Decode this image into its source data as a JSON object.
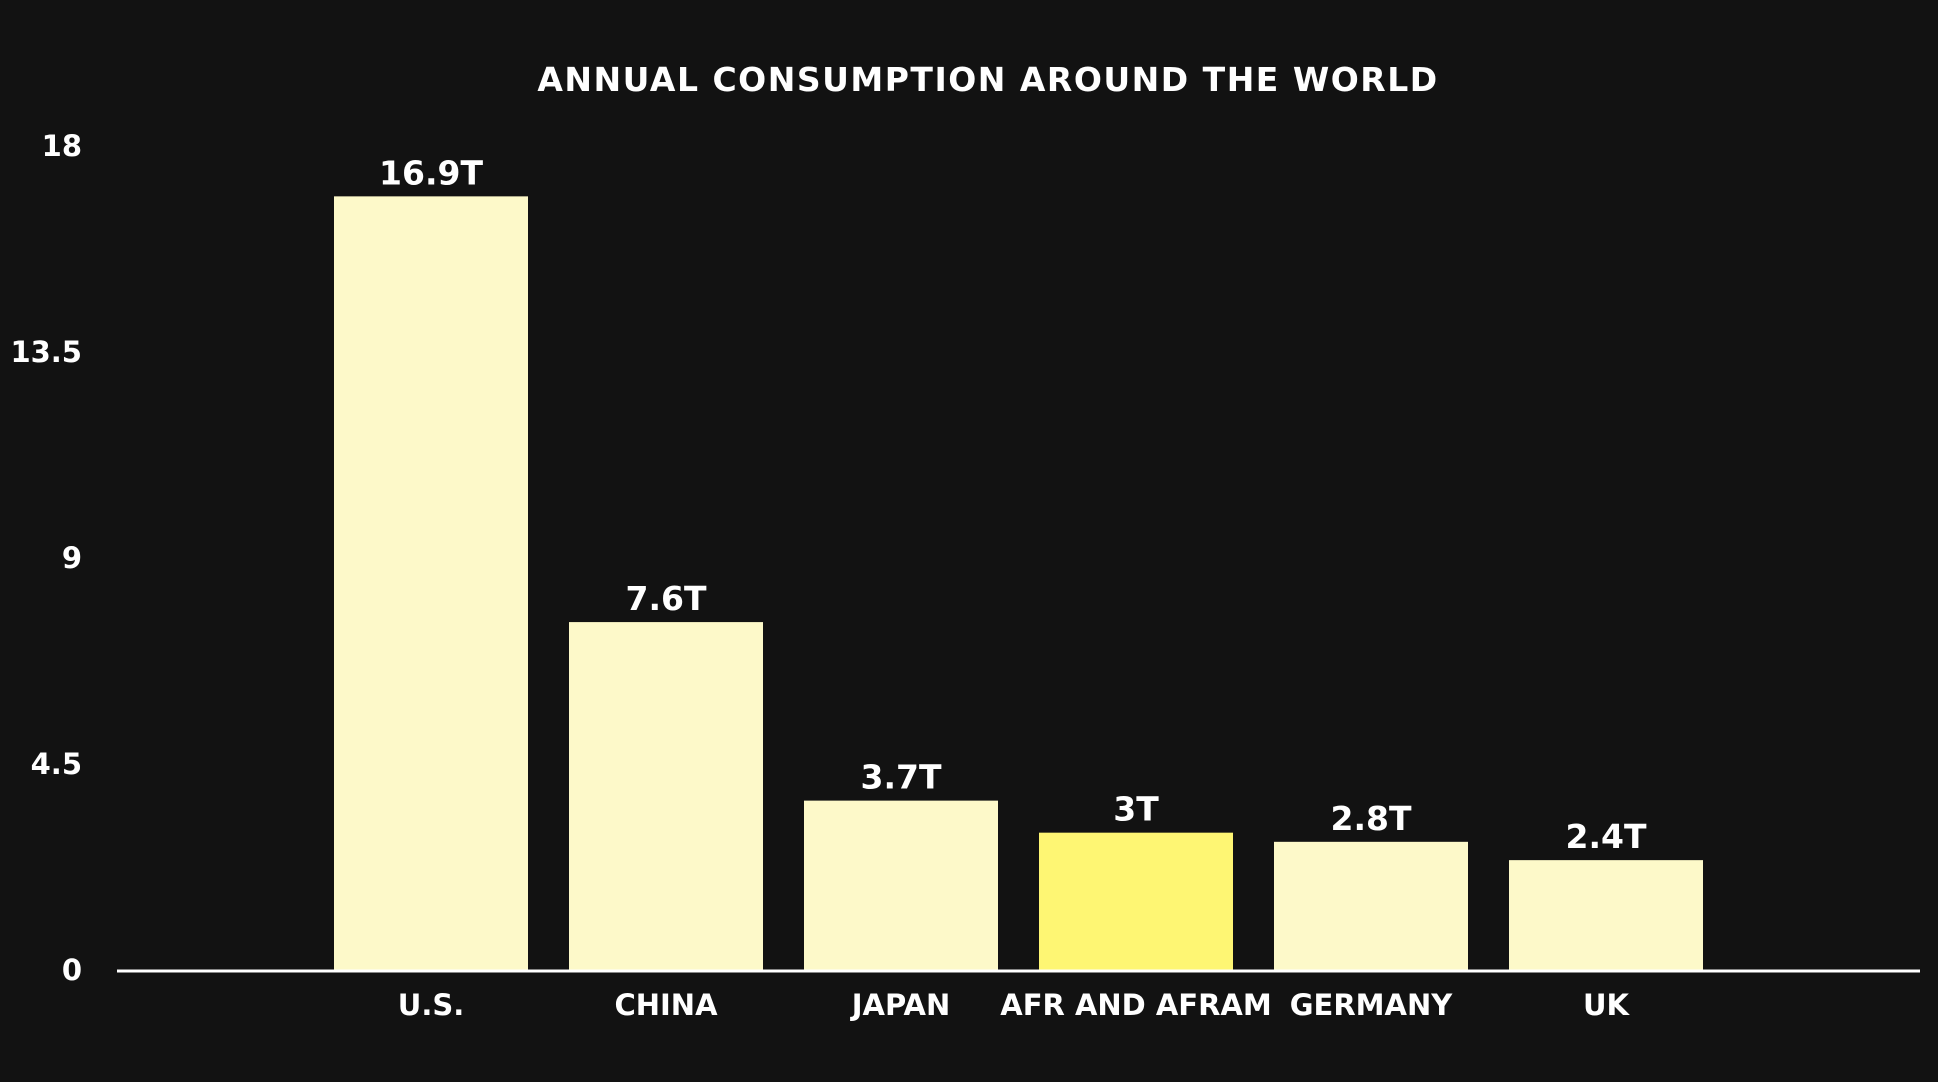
{
  "chart_data": {
    "type": "bar",
    "title": "ANNUAL CONSUMPTION AROUND THE WORLD",
    "xlabel": "",
    "ylabel": "",
    "categories": [
      "U.S.",
      "CHINA",
      "JAPAN",
      "AFR AND AFRAM",
      "GERMANY",
      "UK"
    ],
    "values": [
      16.9,
      7.6,
      3.7,
      3,
      2.8,
      2.4
    ],
    "data_labels": [
      "16.9T",
      "7.6T",
      "3.7T",
      "3T",
      "2.8T",
      "2.4T"
    ],
    "yticks": [
      "0",
      "4.5",
      "9",
      "13.5",
      "18"
    ],
    "ylim": [
      0,
      18
    ],
    "grid": false,
    "legend": "none",
    "colors": {
      "background": "#121212",
      "bar": "#fdf9c9",
      "highlight_bar": "#fef673",
      "text": "#ffffff",
      "axis": "#ffffff"
    },
    "highlight_category": "AFR AND AFRAM"
  }
}
